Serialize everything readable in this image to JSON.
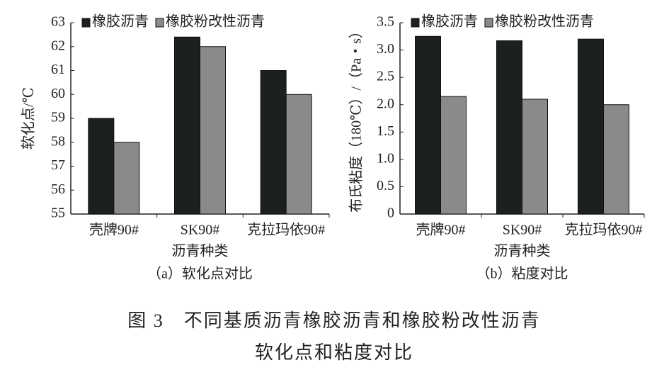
{
  "chart_data": [
    {
      "type": "bar",
      "caption": "（a）软化点对比",
      "x_label": "沥青种类",
      "y_label": "软化点/℃",
      "categories": [
        "壳牌90#",
        "SK90#",
        "克拉玛依90#"
      ],
      "series": [
        {
          "name": "橡胶沥青",
          "color": "#1c211f",
          "values": [
            59,
            62.4,
            61
          ]
        },
        {
          "name": "橡胶粉改性沥青",
          "color": "#8a8a8a",
          "values": [
            58,
            62,
            60
          ]
        }
      ],
      "ylim": [
        55,
        63
      ],
      "yticks": [
        55,
        56,
        57,
        58,
        59,
        60,
        61,
        62,
        63
      ],
      "legend": "top"
    },
    {
      "type": "bar",
      "caption": "（b）粘度对比",
      "x_label": "沥青种类",
      "y_label": "布氏粘度（180℃）/（Pa・s）",
      "categories": [
        "壳牌90#",
        "SK90#",
        "克拉玛依90#"
      ],
      "series": [
        {
          "name": "橡胶沥青",
          "color": "#1c211f",
          "values": [
            3.25,
            3.17,
            3.2
          ]
        },
        {
          "name": "橡胶粉改性沥青",
          "color": "#8a8a8a",
          "values": [
            2.15,
            2.1,
            2.0
          ]
        }
      ],
      "ylim": [
        0,
        3.5
      ],
      "yticks": [
        0,
        0.5,
        {
          "value": 1,
          "label": "1.0"
        },
        1.5,
        {
          "value": 2,
          "label": "2.0"
        },
        2.5,
        {
          "value": 3,
          "label": "3.0"
        },
        3.5
      ],
      "legend": "top"
    }
  ],
  "figure_caption": [
    "图 3　不同基质沥青橡胶沥青和橡胶粉改性沥青",
    "软化点和粘度对比"
  ]
}
